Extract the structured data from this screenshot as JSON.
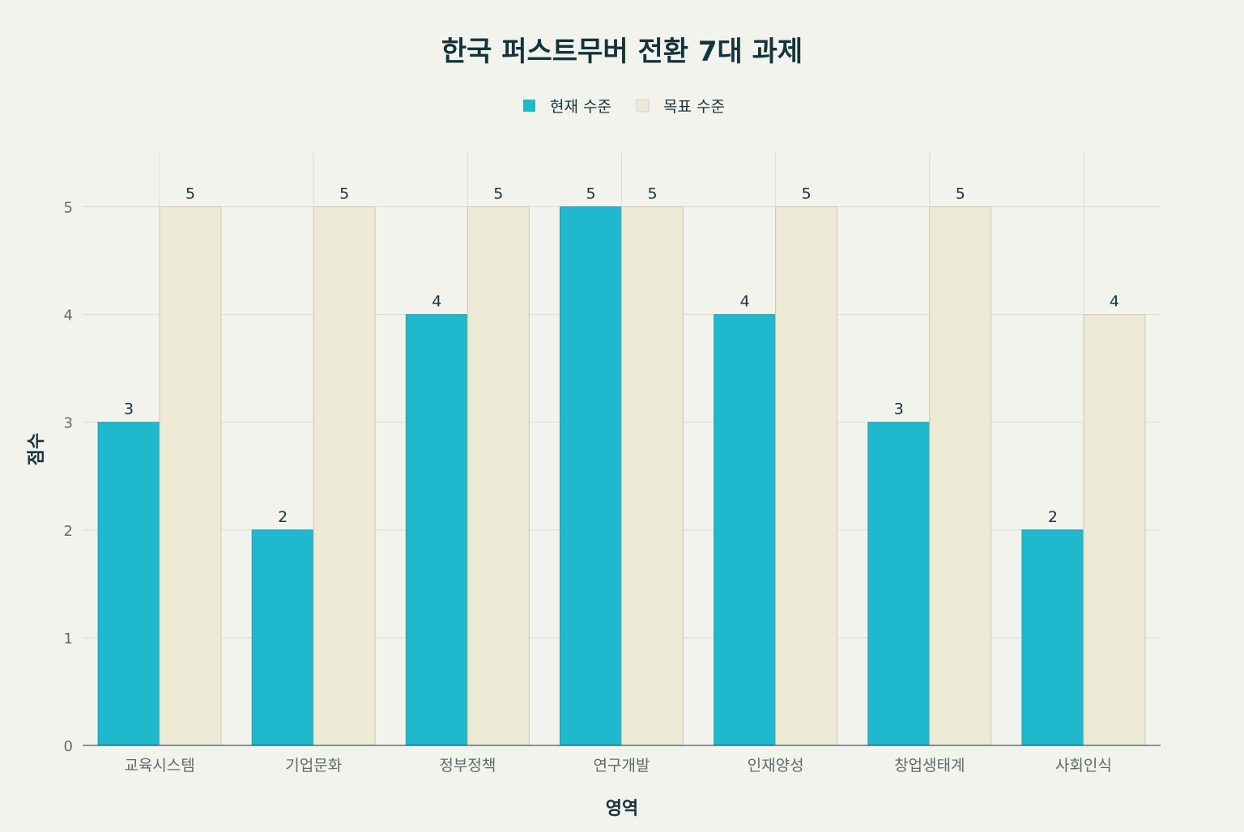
{
  "chart_data": {
    "type": "bar",
    "title": "한국 퍼스트무버 전환 7대 과제",
    "xlabel": "영역",
    "ylabel": "점수",
    "categories": [
      "교육시스템",
      "기업문화",
      "정부정책",
      "연구개발",
      "인재양성",
      "창업생태계",
      "사회인식"
    ],
    "series": [
      {
        "name": "현재 수준",
        "values": [
          3,
          2,
          4,
          5,
          4,
          3,
          2
        ],
        "color": "#1fb8cd"
      },
      {
        "name": "목표 수준",
        "values": [
          5,
          5,
          5,
          5,
          5,
          5,
          4
        ],
        "color": "#ece9d4"
      }
    ],
    "ylim": [
      0,
      5.5
    ],
    "yticks": [
      0,
      1,
      2,
      3,
      4,
      5
    ],
    "grid": true,
    "legend": "top-center",
    "data_labels": true
  }
}
